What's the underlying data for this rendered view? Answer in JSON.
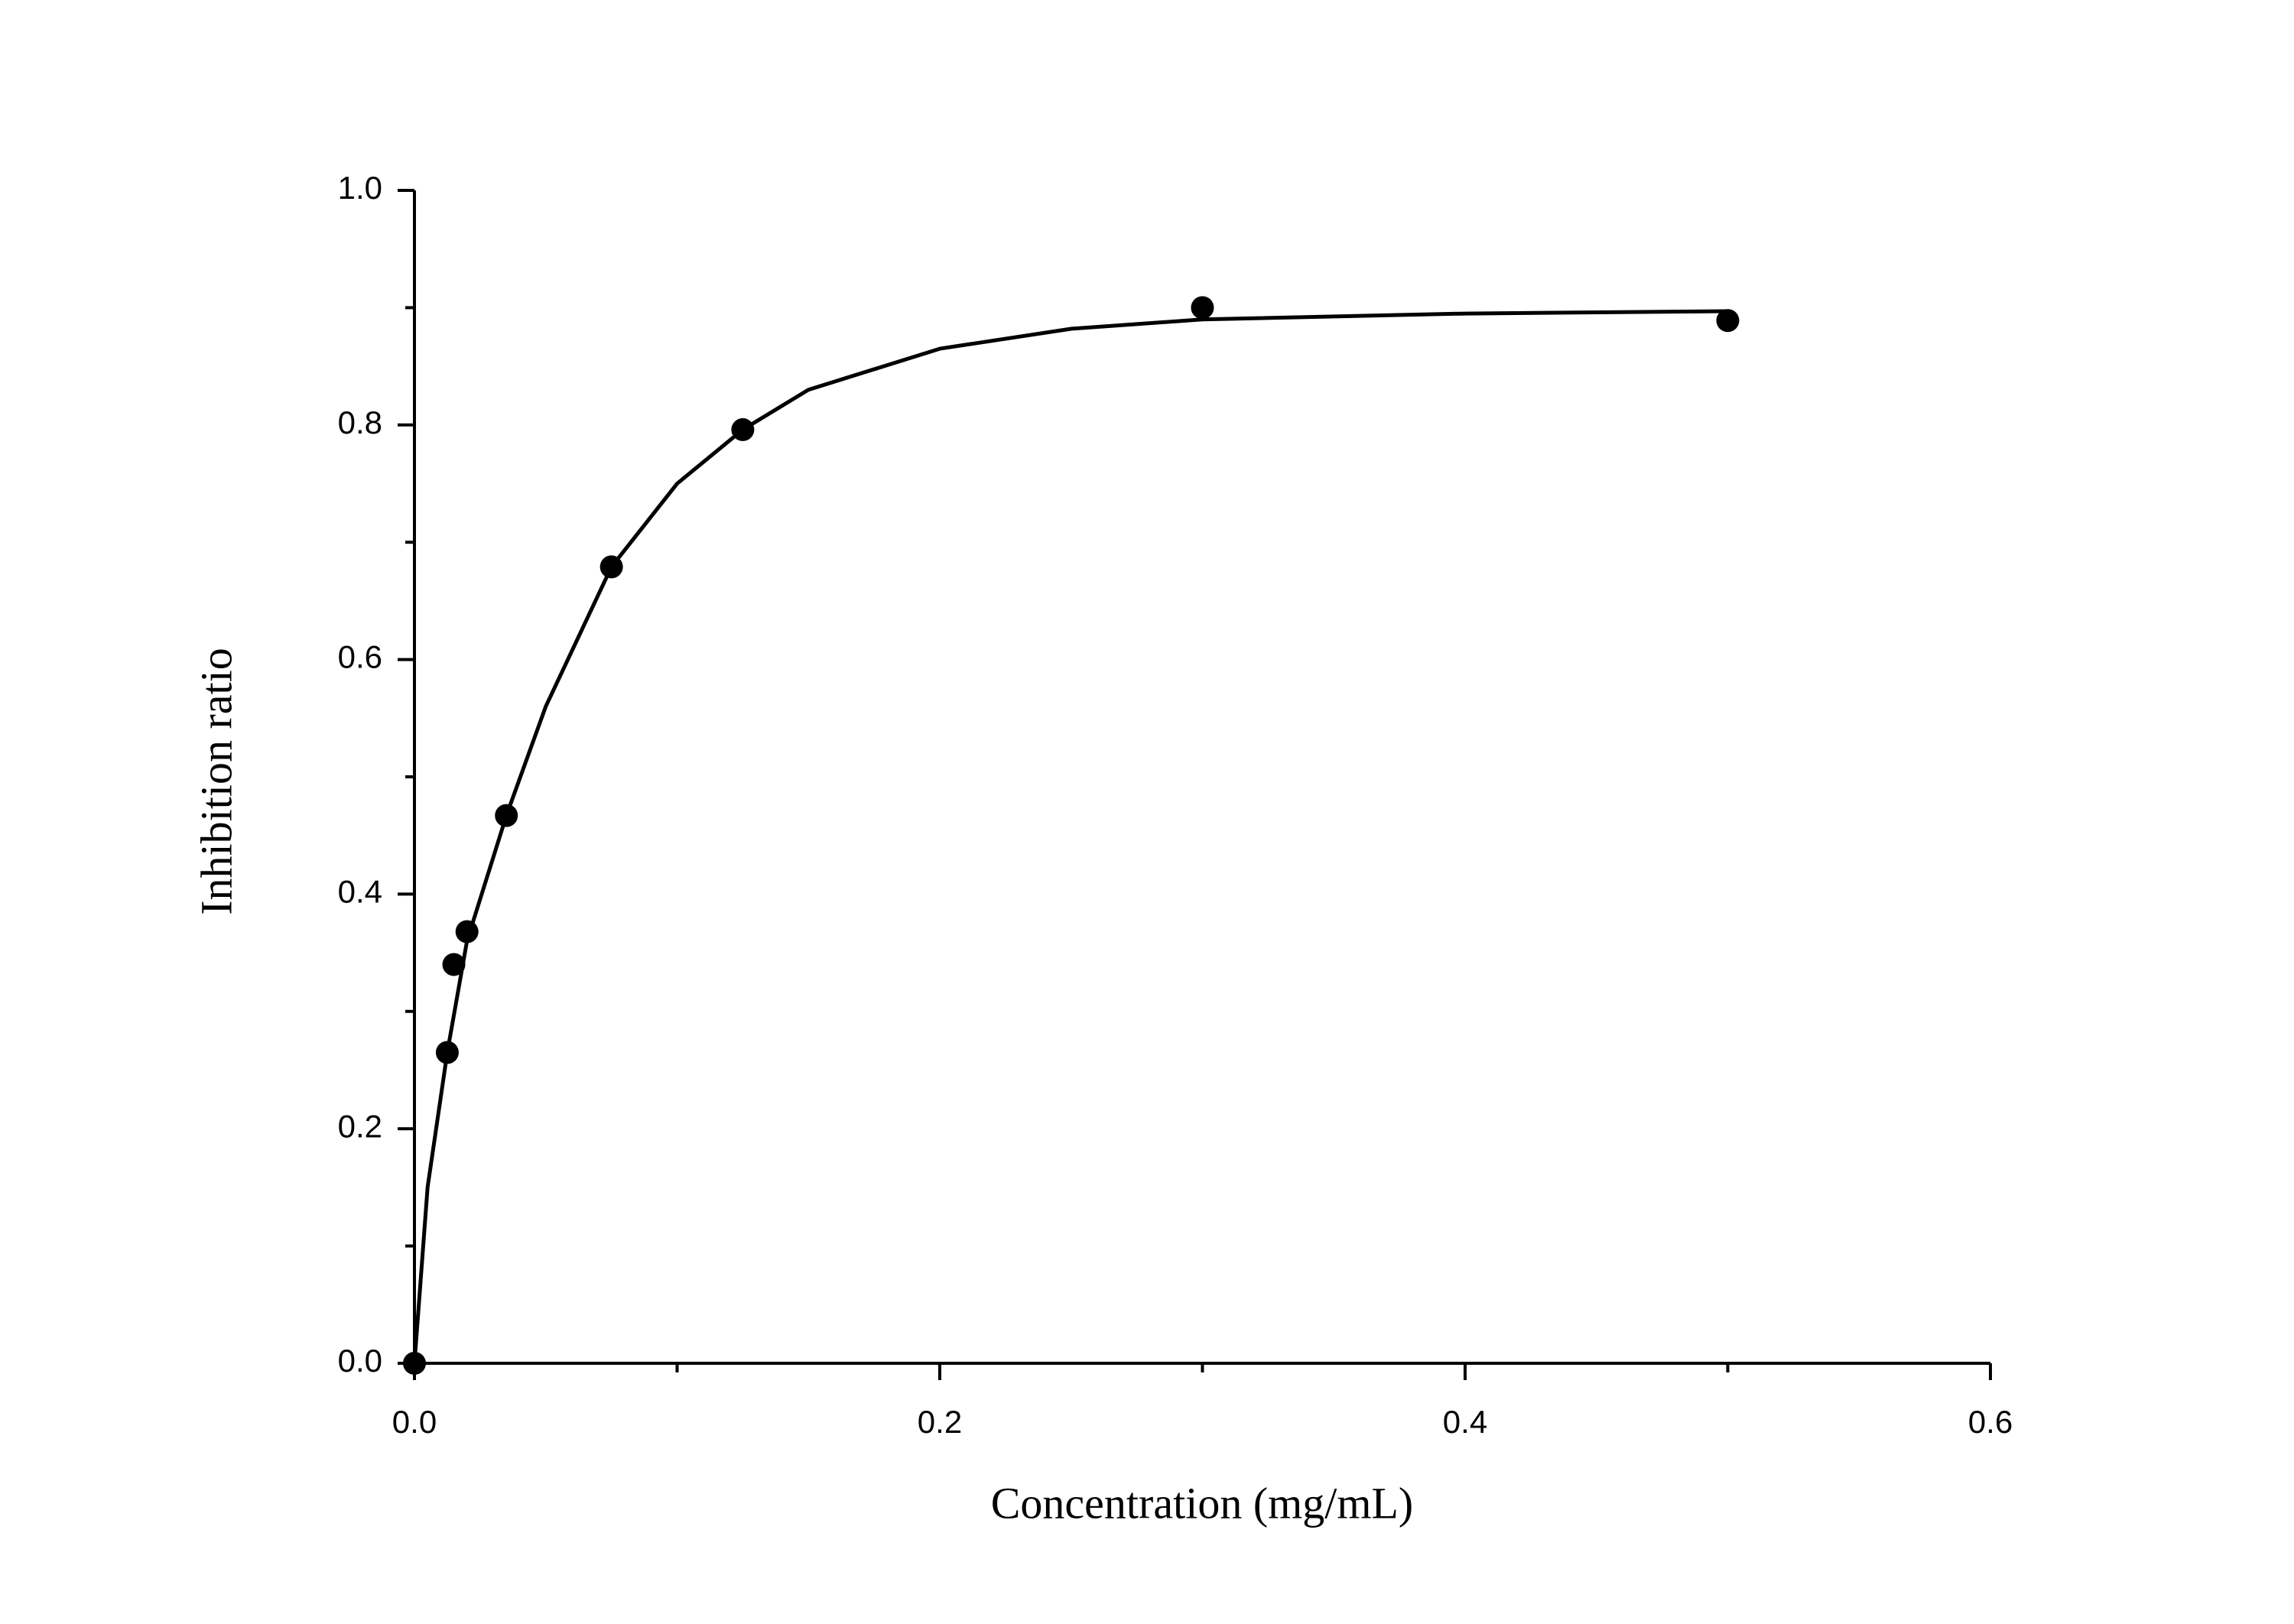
{
  "chart_data": {
    "type": "scatter",
    "xlabel": "Concentration (mg/mL)",
    "ylabel": "Inhibition ratio",
    "xlim": [
      0,
      0.6
    ],
    "ylim": [
      0,
      1.0
    ],
    "xticks": [
      {
        "value": 0,
        "label": "0.0"
      },
      0.2,
      0.4,
      0.6
    ],
    "yticks": [
      {
        "value": 0,
        "label": "0.0"
      },
      0.2,
      0.4,
      0.6,
      0.8,
      {
        "value": 1,
        "label": "1.0"
      }
    ],
    "xminorticks": [
      0.1,
      0.3,
      0.5
    ],
    "yminorticks": [
      0.1,
      0.3,
      0.5,
      0.7,
      0.9
    ],
    "grid": false,
    "series": [
      {
        "kind": "scatter",
        "color": "#000000",
        "x": [
          0,
          0.0125,
          0.015,
          0.02,
          0.035,
          0.075,
          0.125,
          0.3,
          0.5
        ],
        "values": [
          0,
          0.265,
          0.34,
          0.368,
          0.467,
          0.679,
          0.796,
          0.9,
          0.889
        ]
      },
      {
        "kind": "line",
        "color": "#000000",
        "x": [
          0,
          0.005,
          0.0125,
          0.02,
          0.035,
          0.05,
          0.075,
          0.1,
          0.125,
          0.15,
          0.2,
          0.25,
          0.3,
          0.4,
          0.5
        ],
        "values": [
          0,
          0.15,
          0.265,
          0.36,
          0.467,
          0.56,
          0.679,
          0.75,
          0.796,
          0.83,
          0.865,
          0.882,
          0.89,
          0.895,
          0.897
        ]
      }
    ]
  }
}
